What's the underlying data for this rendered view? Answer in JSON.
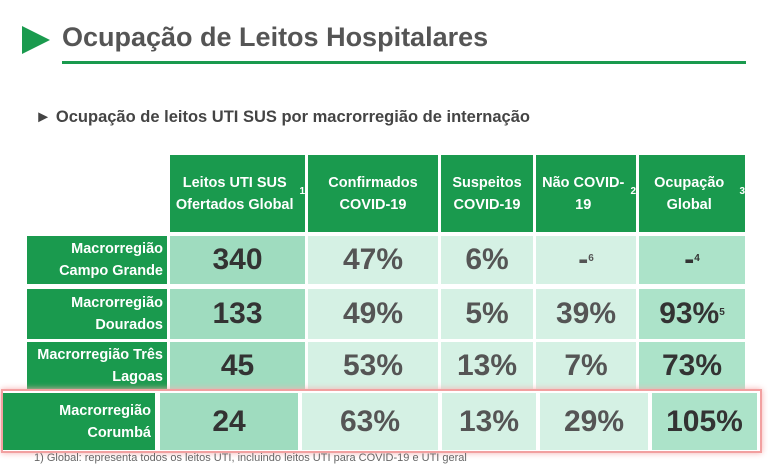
{
  "title": "Ocupação de Leitos Hospitalares",
  "subtitle": "► Ocupação de leitos UTI SUS por macrorregião de internação",
  "colors": {
    "green": "#1a9a4e",
    "highlight": "#f2a0a0"
  },
  "headers": [
    {
      "text": "Leitos UTI SUS Ofertados Global",
      "sup": "1"
    },
    {
      "text": "Confirmados COVID-19",
      "sup": ""
    },
    {
      "text": "Suspeitos COVID-19",
      "sup": ""
    },
    {
      "text": "Não COVID-19",
      "sup": "2"
    },
    {
      "text": "Ocupação Global",
      "sup": "3"
    }
  ],
  "rows": [
    {
      "label": "Macrorregião Campo Grande",
      "values": [
        "340",
        "47%",
        "6%",
        "-",
        "-"
      ],
      "sups": [
        "",
        "",
        "",
        "6",
        "4"
      ]
    },
    {
      "label": "Macrorregião Dourados",
      "values": [
        "133",
        "49%",
        "5%",
        "39%",
        "93%"
      ],
      "sups": [
        "",
        "",
        "",
        "",
        "5"
      ]
    },
    {
      "label": "Macrorregião Três Lagoas",
      "values": [
        "45",
        "53%",
        "13%",
        "7%",
        "73%"
      ],
      "sups": [
        "",
        "",
        "",
        "",
        ""
      ]
    },
    {
      "label": "Macrorregião Corumbá",
      "values": [
        "24",
        "63%",
        "13%",
        "29%",
        "105%"
      ],
      "sups": [
        "",
        "",
        "",
        "",
        ""
      ],
      "highlighted": true
    }
  ],
  "footnote": "1) Global: representa todos os leitos UTI, incluindo leitos UTI para COVID-19 e UTI geral"
}
